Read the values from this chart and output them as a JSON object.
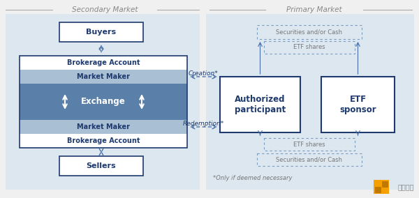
{
  "bg_color": "#edf2f7",
  "panel_bg": "#dce7f0",
  "white": "#ffffff",
  "dark_blue": "#1e3a6e",
  "mid_blue": "#4a6fa5",
  "light_blue_mm": "#a8bfd4",
  "exchange_blue": "#5a7fa8",
  "border_col": "#1e3a6e",
  "arrow_col": "#4a6fa5",
  "text_gray": "#777777",
  "secondary_market_label": "Secondary Market",
  "primary_market_label": "Primary Market",
  "buyers_label": "Buyers",
  "sellers_label": "Sellers",
  "brokerage_label": "Brokerage Account",
  "market_maker_label": "Market Maker",
  "exchange_label": "Exchange",
  "auth_participant_label": "Authorized\nparticipant",
  "etf_sponsor_label": "ETF\nsponsor",
  "creation_label": "Creation*",
  "redemption_label": "Redemption*",
  "sec_cash_top_label": "Securities and/or Cash",
  "etf_shares_top_label": "ETF shares",
  "etf_shares_bottom_label": "ETF shares",
  "sec_cash_bottom_label": "Securities and/or Cash",
  "footnote_label": "*Only if deemed necessary"
}
